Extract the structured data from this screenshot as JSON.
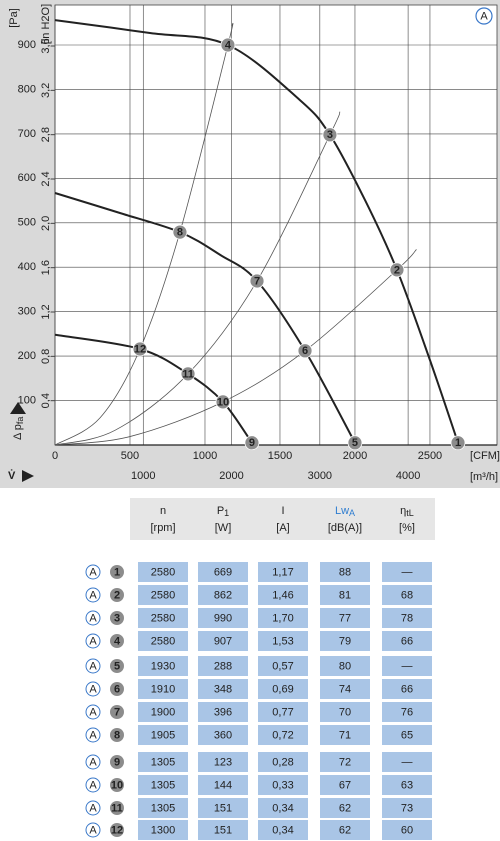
{
  "chart_data": {
    "type": "line",
    "badge": "A",
    "y_label": "[Pa]",
    "y2_label": "[in H2O]",
    "x_label": "[CFM]",
    "x2_label": "[m³/h]",
    "y_title": "Δ p",
    "y_title_sub": "fa",
    "x_title": "V̇",
    "xlim": [
      0,
      2947
    ],
    "ylim": [
      0,
      990
    ],
    "y2lim": [
      0,
      3.97
    ],
    "x2lim": [
      0,
      5007
    ],
    "xticks": [
      0,
      500,
      1000,
      1500,
      2000,
      2500
    ],
    "yticks": [
      100,
      200,
      300,
      400,
      500,
      600,
      700,
      800,
      900
    ],
    "y2ticks": [
      {
        "value": 0.4,
        "label": "0,4"
      },
      {
        "value": 0.8,
        "label": "0,8"
      },
      {
        "value": 1.2,
        "label": "1,2"
      },
      {
        "value": 1.6,
        "label": "1,6"
      },
      {
        "value": 2.0,
        "label": "2,0"
      },
      {
        "value": 2.4,
        "label": "2,4"
      },
      {
        "value": 2.8,
        "label": "2,8"
      },
      {
        "value": 3.2,
        "label": "3,2"
      },
      {
        "value": 3.6,
        "label": "3,6"
      }
    ],
    "x2ticks": [
      1000,
      2000,
      3000,
      4000
    ],
    "grid": true,
    "series": [
      {
        "kind": "curve",
        "color": "#222222",
        "x": [
          0,
          633,
          1153,
          1633,
          1833,
          2067,
          2280,
          2500,
          2687
        ],
        "values": [
          956,
          927,
          900,
          776,
          698,
          551,
          394,
          191,
          5
        ]
      },
      {
        "kind": "curve",
        "color": "#222222",
        "x": [
          0,
          433,
          833,
          1100,
          1347,
          1667,
          2000
        ],
        "values": [
          567,
          522,
          479,
          428,
          369,
          212,
          5
        ]
      },
      {
        "kind": "curve",
        "color": "#222222",
        "x": [
          0,
          567,
          887,
          1120,
          1313
        ],
        "values": [
          248,
          216,
          160,
          97,
          5
        ]
      },
      {
        "kind": "operating",
        "color": "#555555",
        "x": [
          0,
          300,
          567,
          833,
          1153,
          1180
        ],
        "values": [
          0,
          61,
          216,
          479,
          900,
          945
        ]
      },
      {
        "kind": "operating",
        "color": "#555555",
        "x": [
          0,
          400,
          887,
          1347,
          1833,
          1900
        ],
        "values": [
          0,
          33,
          160,
          369,
          698,
          750
        ]
      },
      {
        "kind": "operating",
        "color": "#555555",
        "x": [
          0,
          500,
          1120,
          1667,
          2280,
          2410
        ],
        "values": [
          0,
          19,
          97,
          212,
          394,
          440
        ]
      }
    ],
    "markers": [
      {
        "label": "1",
        "x": 2687,
        "y": 5
      },
      {
        "label": "2",
        "x": 2280,
        "y": 394
      },
      {
        "label": "3",
        "x": 1833,
        "y": 698
      },
      {
        "label": "4",
        "x": 1153,
        "y": 900
      },
      {
        "label": "5",
        "x": 2000,
        "y": 5
      },
      {
        "label": "6",
        "x": 1667,
        "y": 212
      },
      {
        "label": "7",
        "x": 1347,
        "y": 369
      },
      {
        "label": "8",
        "x": 833,
        "y": 479
      },
      {
        "label": "9",
        "x": 1313,
        "y": 5
      },
      {
        "label": "10",
        "x": 1120,
        "y": 97
      },
      {
        "label": "11",
        "x": 887,
        "y": 160
      },
      {
        "label": "12",
        "x": 567,
        "y": 216
      }
    ]
  },
  "table": {
    "columns": [
      {
        "top": "n",
        "bottom": "[rpm]"
      },
      {
        "top": "P",
        "sub": "1",
        "bottom": "[W]"
      },
      {
        "top": "I",
        "bottom": "[A]"
      },
      {
        "top": "Lw",
        "sub": "A",
        "bottom": "[dB(A)]"
      },
      {
        "top": "η",
        "sub": "tL",
        "bottom": "[%]"
      }
    ],
    "rows": [
      {
        "curve": "A",
        "no": "1",
        "cells": [
          "2580",
          "669",
          "1,17",
          "88",
          "—"
        ]
      },
      {
        "curve": "A",
        "no": "2",
        "cells": [
          "2580",
          "862",
          "1,46",
          "81",
          "68"
        ]
      },
      {
        "curve": "A",
        "no": "3",
        "cells": [
          "2580",
          "990",
          "1,70",
          "77",
          "78"
        ]
      },
      {
        "curve": "A",
        "no": "4",
        "cells": [
          "2580",
          "907",
          "1,53",
          "79",
          "66"
        ]
      },
      {
        "curve": "A",
        "no": "5",
        "cells": [
          "1930",
          "288",
          "0,57",
          "80",
          "—"
        ]
      },
      {
        "curve": "A",
        "no": "6",
        "cells": [
          "1910",
          "348",
          "0,69",
          "74",
          "66"
        ]
      },
      {
        "curve": "A",
        "no": "7",
        "cells": [
          "1900",
          "396",
          "0,77",
          "70",
          "76"
        ]
      },
      {
        "curve": "A",
        "no": "8",
        "cells": [
          "1905",
          "360",
          "0,72",
          "71",
          "65"
        ]
      },
      {
        "curve": "A",
        "no": "9",
        "cells": [
          "1305",
          "123",
          "0,28",
          "72",
          "—"
        ]
      },
      {
        "curve": "A",
        "no": "10",
        "cells": [
          "1305",
          "144",
          "0,33",
          "67",
          "63"
        ]
      },
      {
        "curve": "A",
        "no": "11",
        "cells": [
          "1305",
          "151",
          "0,34",
          "62",
          "73"
        ]
      },
      {
        "curve": "A",
        "no": "12",
        "cells": [
          "1300",
          "151",
          "0,34",
          "62",
          "60"
        ]
      }
    ]
  }
}
